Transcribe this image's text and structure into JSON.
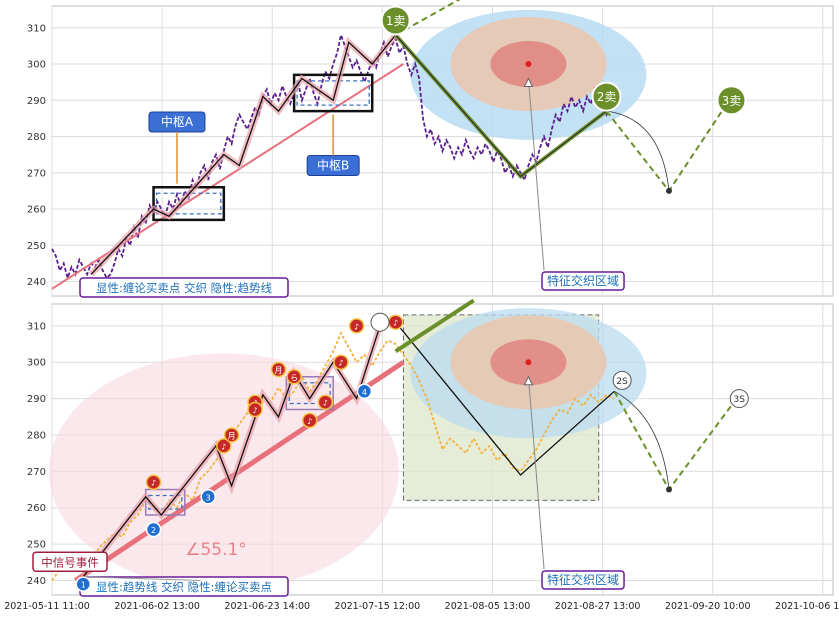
{
  "chart_data": {
    "type": "line",
    "title": "",
    "xlabel": "",
    "ylabel": "",
    "x_tick_labels": [
      "2021-05-11 11:00",
      "2021-06-02 13:00",
      "2021-06-23 14:00",
      "2021-07-15 12:00",
      "2021-08-05 13:00",
      "2021-08-27 13:00",
      "2021-09-20 10:00",
      "2021-10-06 11:00"
    ],
    "y_ticks": [
      240,
      250,
      260,
      270,
      280,
      290,
      300,
      310
    ],
    "ylim": [
      236,
      316
    ],
    "xlim": [
      0,
      100
    ],
    "grid": true,
    "colors": {
      "price_top": "#5a1f8c",
      "price_bottom": "#f2b33d",
      "bi": "#111111",
      "trend_line": "#e8707a",
      "green": "#6b8f2a",
      "zone_outer": "#b9dcf2",
      "zone_mid": "#e8c8b0",
      "zone_inner": "#e07a7a",
      "label_border": "#6a1b9a",
      "label_text": "#1d6fb8"
    },
    "panels": [
      {
        "name": "top",
        "price_series": [
          [
            0,
            249
          ],
          [
            0.5,
            247
          ],
          [
            1,
            243
          ],
          [
            1.5,
            245
          ],
          [
            2,
            241
          ],
          [
            2.5,
            244
          ],
          [
            3,
            242
          ],
          [
            3.5,
            246
          ],
          [
            4,
            244
          ],
          [
            4.5,
            242
          ],
          [
            5,
            245
          ],
          [
            5.5,
            244
          ],
          [
            6,
            246
          ],
          [
            6.5,
            243
          ],
          [
            7,
            241
          ],
          [
            7.5,
            242
          ],
          [
            8,
            245
          ],
          [
            8.5,
            249
          ],
          [
            9,
            247
          ],
          [
            9.5,
            252
          ],
          [
            10,
            250
          ],
          [
            10.5,
            255
          ],
          [
            11,
            252
          ],
          [
            11.5,
            258
          ],
          [
            12,
            256
          ],
          [
            12.5,
            261
          ],
          [
            13,
            259
          ],
          [
            13.5,
            262
          ],
          [
            14,
            260
          ],
          [
            14.5,
            258
          ],
          [
            15,
            262
          ],
          [
            15.5,
            260
          ],
          [
            16,
            264
          ],
          [
            16.5,
            261
          ],
          [
            17,
            265
          ],
          [
            17.5,
            263
          ],
          [
            18,
            268
          ],
          [
            18.5,
            266
          ],
          [
            19,
            270
          ],
          [
            19.5,
            272
          ],
          [
            20,
            268
          ],
          [
            20.5,
            273
          ],
          [
            21,
            275
          ],
          [
            21.5,
            271
          ],
          [
            22,
            276
          ],
          [
            22.5,
            280
          ],
          [
            23,
            278
          ],
          [
            23.5,
            283
          ],
          [
            24,
            286
          ],
          [
            24.5,
            284
          ],
          [
            25,
            282
          ],
          [
            25.5,
            285
          ],
          [
            26,
            288
          ],
          [
            26.5,
            286
          ],
          [
            27,
            291
          ],
          [
            27.5,
            293
          ],
          [
            28,
            289
          ],
          [
            28.5,
            292
          ],
          [
            29,
            290
          ],
          [
            29.5,
            294
          ],
          [
            30,
            291
          ],
          [
            30.5,
            289
          ],
          [
            31,
            292
          ],
          [
            31.5,
            295
          ],
          [
            32,
            290
          ],
          [
            32.5,
            293
          ],
          [
            33,
            296
          ],
          [
            33.5,
            292
          ],
          [
            34,
            289
          ],
          [
            34.5,
            294
          ],
          [
            35,
            298
          ],
          [
            35.5,
            296
          ],
          [
            36,
            300
          ],
          [
            36.5,
            303
          ],
          [
            37,
            308
          ],
          [
            37.5,
            305
          ],
          [
            38,
            302
          ],
          [
            38.5,
            299
          ],
          [
            39,
            301
          ],
          [
            39.5,
            298
          ],
          [
            40,
            295
          ],
          [
            40.5,
            298
          ],
          [
            41,
            301
          ],
          [
            41.5,
            299
          ],
          [
            42,
            303
          ],
          [
            42.5,
            306
          ],
          [
            43,
            302
          ],
          [
            43.5,
            305
          ],
          [
            44,
            307
          ],
          [
            44.5,
            303
          ],
          [
            45,
            305
          ],
          [
            45.5,
            300
          ],
          [
            46,
            297
          ],
          [
            46.5,
            300
          ],
          [
            47,
            296
          ],
          [
            47.5,
            285
          ],
          [
            48,
            280
          ],
          [
            48.5,
            282
          ],
          [
            49,
            278
          ],
          [
            49.5,
            280
          ],
          [
            50,
            276
          ],
          [
            50.5,
            279
          ],
          [
            51,
            277
          ],
          [
            51.5,
            274
          ],
          [
            52,
            277
          ],
          [
            52.5,
            275
          ],
          [
            53,
            279
          ],
          [
            53.5,
            276
          ],
          [
            54,
            274
          ],
          [
            54.5,
            277
          ],
          [
            55,
            275
          ],
          [
            55.5,
            278
          ],
          [
            56,
            276
          ],
          [
            56.5,
            273
          ],
          [
            57,
            276
          ],
          [
            57.5,
            274
          ],
          [
            58,
            270
          ],
          [
            58.5,
            272
          ],
          [
            59,
            269
          ],
          [
            59.5,
            272
          ],
          [
            60,
            270
          ],
          [
            60.5,
            268
          ],
          [
            61,
            272
          ],
          [
            61.5,
            275
          ],
          [
            62,
            273
          ],
          [
            62.5,
            277
          ],
          [
            63,
            280
          ],
          [
            63.5,
            277
          ],
          [
            64,
            282
          ],
          [
            64.5,
            286
          ],
          [
            65,
            284
          ],
          [
            65.5,
            289
          ],
          [
            66,
            287
          ],
          [
            66.5,
            291
          ],
          [
            67,
            288
          ],
          [
            67.5,
            290
          ],
          [
            68,
            287
          ],
          [
            68.5,
            291
          ],
          [
            69,
            289
          ],
          [
            69.5,
            293
          ],
          [
            70,
            290
          ],
          [
            70.5,
            288
          ],
          [
            71,
            286
          ],
          [
            71.5,
            289
          ]
        ],
        "bi_points": [
          [
            5,
            242
          ],
          [
            13,
            260
          ],
          [
            15,
            258
          ],
          [
            22,
            275
          ],
          [
            24,
            272
          ],
          [
            27,
            291
          ],
          [
            29,
            287
          ],
          [
            32,
            296
          ],
          [
            36,
            290
          ],
          [
            38,
            306
          ],
          [
            41,
            300
          ],
          [
            44,
            308
          ],
          [
            60,
            269
          ],
          [
            71,
            287
          ]
        ],
        "bi_dashed": [
          [
            71,
            287
          ],
          [
            79,
            265
          ],
          [
            87,
            291
          ]
        ],
        "green_solid": [
          [
            44,
            308
          ],
          [
            60,
            269
          ],
          [
            71,
            287
          ]
        ],
        "green_dashed": [
          [
            44,
            308
          ],
          [
            54,
            320
          ]
        ],
        "trend_line": [
          [
            0,
            238
          ],
          [
            45,
            300
          ]
        ],
        "zhongshu": [
          {
            "x0": 13,
            "x1": 22,
            "y0": 257,
            "y1": 266,
            "label": "中枢A"
          },
          {
            "x0": 31,
            "x1": 41,
            "y0": 287,
            "y1": 297,
            "label": "中枢B"
          }
        ],
        "bs_points": [
          {
            "x": 44,
            "y": 312,
            "label": "1卖"
          },
          {
            "x": 71,
            "y": 291,
            "label": "2卖"
          },
          {
            "x": 87,
            "y": 290,
            "label": "3卖"
          }
        ],
        "footer_label": "显性:缠论买卖点 交织 隐性:趋势线",
        "zone_label": "特征交织区域"
      },
      {
        "name": "bottom",
        "price_series": [
          [
            0,
            240
          ],
          [
            1,
            243
          ],
          [
            2,
            244
          ],
          [
            3,
            246
          ],
          [
            4,
            247
          ],
          [
            5,
            245
          ],
          [
            6,
            249
          ],
          [
            7,
            251
          ],
          [
            8,
            253
          ],
          [
            9,
            252
          ],
          [
            10,
            256
          ],
          [
            11,
            258
          ],
          [
            12,
            262
          ],
          [
            13,
            260
          ],
          [
            14,
            258
          ],
          [
            15,
            262
          ],
          [
            16,
            260
          ],
          [
            17,
            264
          ],
          [
            18,
            262
          ],
          [
            19,
            268
          ],
          [
            20,
            270
          ],
          [
            21,
            273
          ],
          [
            22,
            276
          ],
          [
            23,
            280
          ],
          [
            24,
            283
          ],
          [
            25,
            286
          ],
          [
            26,
            289
          ],
          [
            27,
            291
          ],
          [
            28,
            289
          ],
          [
            29,
            293
          ],
          [
            30,
            290
          ],
          [
            31,
            292
          ],
          [
            32,
            296
          ],
          [
            33,
            292
          ],
          [
            34,
            295
          ],
          [
            35,
            299
          ],
          [
            36,
            303
          ],
          [
            37,
            308
          ],
          [
            38,
            304
          ],
          [
            39,
            300
          ],
          [
            40,
            302
          ],
          [
            41,
            299
          ],
          [
            42,
            303
          ],
          [
            43,
            306
          ],
          [
            44,
            305
          ],
          [
            45,
            302
          ],
          [
            46,
            299
          ],
          [
            47,
            295
          ],
          [
            48,
            290
          ],
          [
            49,
            283
          ],
          [
            50,
            276
          ],
          [
            51,
            279
          ],
          [
            52,
            277
          ],
          [
            53,
            275
          ],
          [
            54,
            279
          ],
          [
            55,
            275
          ],
          [
            56,
            277
          ],
          [
            57,
            273
          ],
          [
            58,
            275
          ],
          [
            59,
            271
          ],
          [
            60,
            270
          ],
          [
            61,
            273
          ],
          [
            62,
            276
          ],
          [
            63,
            280
          ],
          [
            64,
            284
          ],
          [
            65,
            287
          ],
          [
            66,
            286
          ],
          [
            67,
            290
          ],
          [
            68,
            288
          ],
          [
            69,
            291
          ],
          [
            70,
            289
          ],
          [
            71,
            291
          ],
          [
            72,
            290
          ]
        ],
        "bi_points": [
          [
            4,
            241
          ],
          [
            12,
            263
          ],
          [
            14,
            258
          ],
          [
            21,
            277
          ],
          [
            23,
            266
          ],
          [
            27,
            291
          ],
          [
            29,
            285
          ],
          [
            31,
            297
          ],
          [
            33,
            290
          ],
          [
            36,
            300
          ],
          [
            39,
            290
          ],
          [
            42,
            310
          ],
          [
            44,
            311
          ],
          [
            60,
            269
          ],
          [
            72,
            292
          ]
        ],
        "bi_dashed": [
          [
            72,
            292
          ],
          [
            79,
            265
          ],
          [
            88,
            291
          ]
        ],
        "green_solid": [
          [
            44,
            303
          ],
          [
            54,
            317
          ]
        ],
        "trend_line": [
          [
            3,
            240
          ],
          [
            45,
            300
          ]
        ],
        "rect_zone": {
          "x0": 45,
          "x1": 70,
          "y0": 262,
          "y1": 313
        },
        "zhongshu": [
          {
            "x0": 12,
            "x1": 17,
            "y0": 258,
            "y1": 265
          },
          {
            "x0": 30,
            "x1": 36,
            "y0": 287,
            "y1": 296
          }
        ],
        "sell_marks": [
          {
            "x": 13,
            "y": 267,
            "t": "♪"
          },
          {
            "x": 22,
            "y": 277,
            "t": "♪"
          },
          {
            "x": 23,
            "y": 280,
            "t": "月"
          },
          {
            "x": 26,
            "y": 289,
            "t": "♪"
          },
          {
            "x": 26,
            "y": 287,
            "t": "♪"
          },
          {
            "x": 29,
            "y": 298,
            "t": "月"
          },
          {
            "x": 31,
            "y": 296,
            "t": "ら"
          },
          {
            "x": 33,
            "y": 284,
            "t": "♪"
          },
          {
            "x": 35,
            "y": 289,
            "t": "♪"
          },
          {
            "x": 37,
            "y": 300,
            "t": "♪"
          },
          {
            "x": 39,
            "y": 310,
            "t": "♪"
          },
          {
            "x": 44,
            "y": 311,
            "t": "♪"
          }
        ],
        "buy_marks": [
          {
            "x": 4,
            "y": 239,
            "t": "1"
          },
          {
            "x": 13,
            "y": 254,
            "t": "2"
          },
          {
            "x": 20,
            "y": 263,
            "t": "3"
          },
          {
            "x": 40,
            "y": 292,
            "t": "4"
          }
        ],
        "s_marks": [
          {
            "x": 42,
            "y": 311,
            "t": ""
          },
          {
            "x": 73,
            "y": 295,
            "t": "2S"
          },
          {
            "x": 88,
            "y": 290,
            "t": "3S"
          }
        ],
        "event_label": "中信号事件",
        "angle_label": "∠55.1°",
        "footer_label": "显性:趋势线 交织 隐性:缠论买卖点",
        "zone_label": "特征交织区域"
      }
    ]
  },
  "labels": {
    "top_zhongshu_a": "中枢A",
    "top_zhongshu_b": "中枢B",
    "top_sell_1": "1卖",
    "top_sell_2": "2卖",
    "top_sell_3": "3卖",
    "top_zone": "特征交织区域",
    "top_footer": "显性:缠论买卖点 交织 隐性:趋势线",
    "bottom_zone": "特征交织区域",
    "bottom_footer": "显性:趋势线 交织 隐性:缠论买卖点",
    "bottom_event": "中信号事件",
    "bottom_angle": "∠55.1°",
    "bottom_s2": "2S",
    "bottom_s3": "3S"
  }
}
